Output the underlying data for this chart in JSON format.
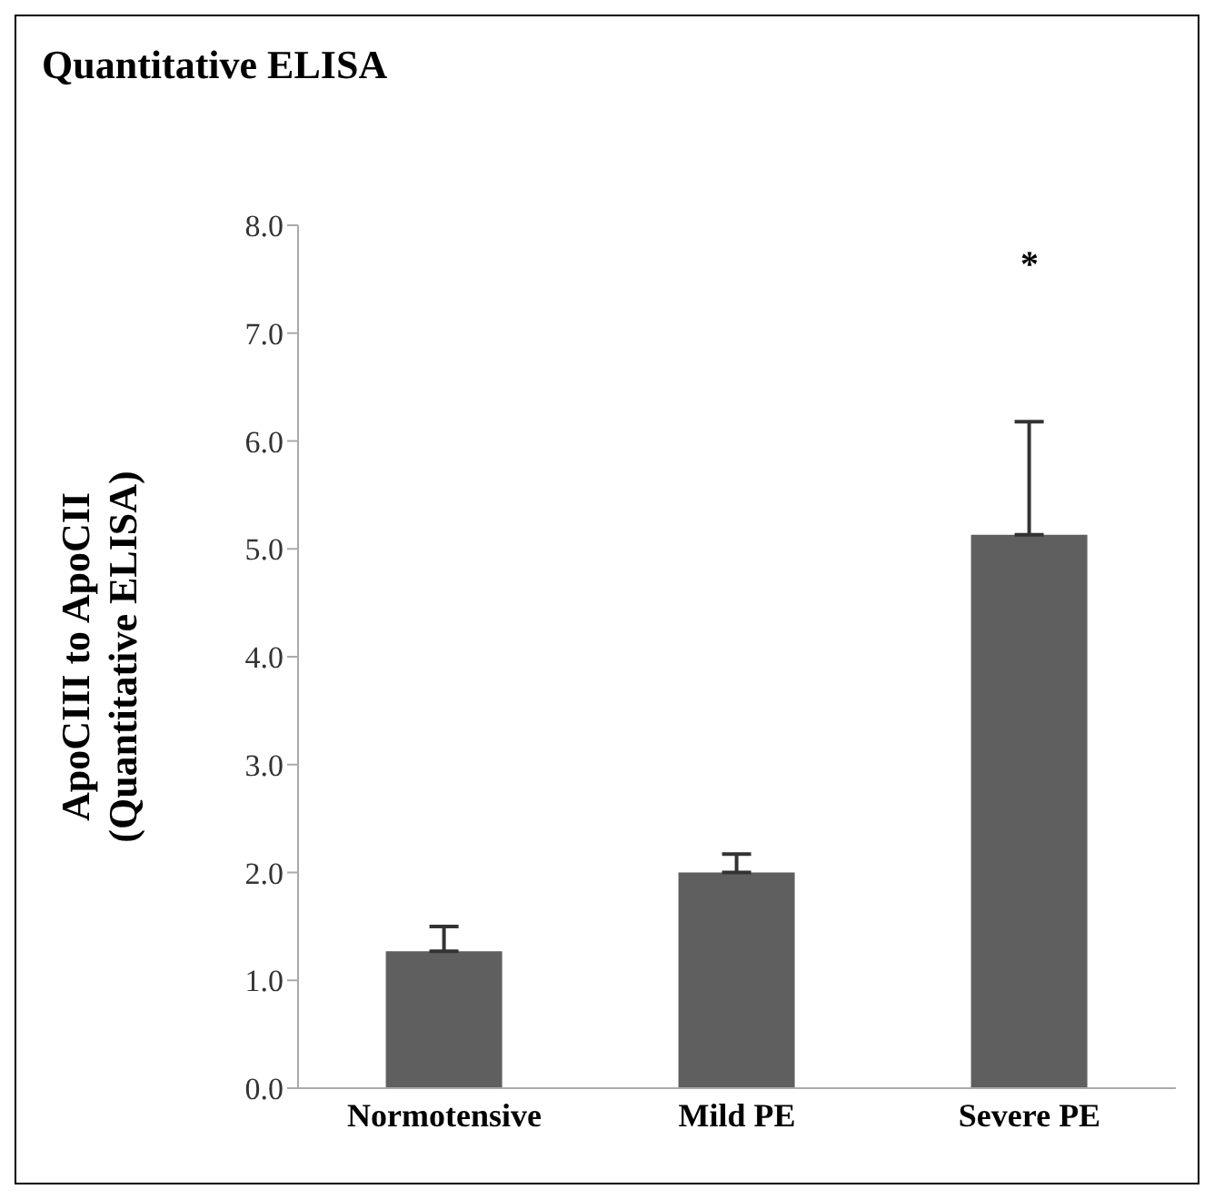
{
  "chart_data": {
    "type": "bar",
    "title": "Quantitative ELISA",
    "ylabel": "ApoCIII to ApoCII\n(Quantitative ELISA)",
    "categories": [
      "Normotensive",
      "Mild PE",
      "Severe PE"
    ],
    "values": [
      1.27,
      2.0,
      5.13
    ],
    "color": "#5f5f5f",
    "errors": [
      [
        1.27,
        1.5
      ],
      [
        2.0,
        2.17
      ],
      [
        5.13,
        6.18
      ]
    ],
    "ylim": [
      0,
      8
    ],
    "yticks": [
      {
        "value": 0,
        "label": "0.0"
      },
      {
        "value": 1,
        "label": "1.0"
      },
      {
        "value": 2,
        "label": "2.0"
      },
      {
        "value": 3,
        "label": "3.0"
      },
      {
        "value": 4,
        "label": "4.0"
      },
      {
        "value": 5,
        "label": "5.0"
      },
      {
        "value": 6,
        "label": "6.0"
      },
      {
        "value": 7,
        "label": "7.0"
      },
      {
        "value": 8,
        "label": "8.0"
      }
    ],
    "annotations": [
      "*"
    ],
    "grid": false,
    "legend": false
  }
}
